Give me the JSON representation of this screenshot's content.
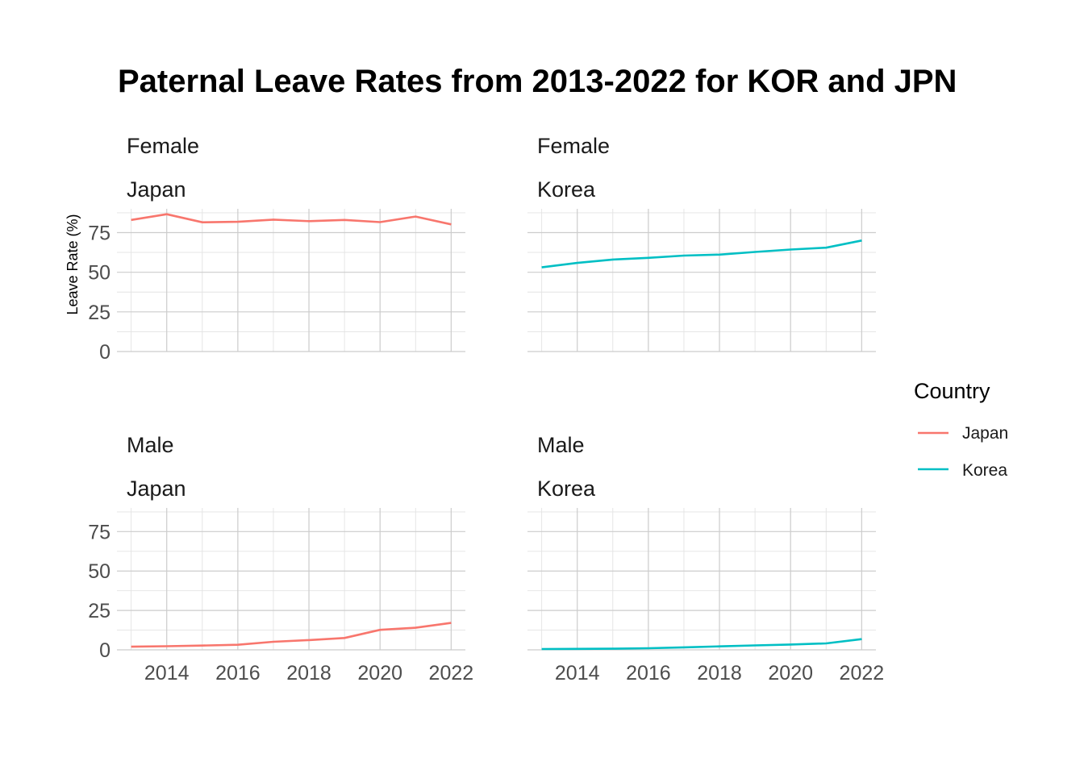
{
  "chart_data": {
    "type": "line",
    "title": "Paternal Leave Rates from 2013-2022 for KOR and JPN",
    "ylabel": "Leave Rate (%)",
    "xlabel": "",
    "xlim": [
      2013,
      2022
    ],
    "ylim": [
      0,
      90
    ],
    "x_ticks": [
      "2014",
      "2016",
      "2018",
      "2020",
      "2022"
    ],
    "y_ticks": [
      "0",
      "25",
      "50",
      "75"
    ],
    "grid": true,
    "legend": {
      "title": "Country",
      "position": "right",
      "entries": [
        {
          "label": "Japan",
          "color": "#F8766D"
        },
        {
          "label": "Korea",
          "color": "#00BFC4"
        }
      ]
    },
    "panels": [
      {
        "strip_top": "Female",
        "strip_bottom": "Japan",
        "country": "Japan",
        "x": [
          2013,
          2014,
          2015,
          2016,
          2017,
          2018,
          2019,
          2020,
          2021,
          2022
        ],
        "values": [
          83.0,
          86.6,
          81.5,
          81.8,
          83.2,
          82.2,
          83.0,
          81.6,
          85.1,
          80.2
        ]
      },
      {
        "strip_top": "Female",
        "strip_bottom": "Korea",
        "country": "Korea",
        "x": [
          2013,
          2014,
          2015,
          2016,
          2017,
          2018,
          2019,
          2020,
          2021,
          2022
        ],
        "values": [
          53.1,
          55.9,
          58.0,
          59.1,
          60.5,
          61.1,
          62.8,
          64.3,
          65.5,
          70.0
        ]
      },
      {
        "strip_top": "Male",
        "strip_bottom": "Japan",
        "country": "Japan",
        "x": [
          2013,
          2014,
          2015,
          2016,
          2017,
          2018,
          2019,
          2020,
          2021,
          2022
        ],
        "values": [
          2.0,
          2.3,
          2.7,
          3.2,
          5.1,
          6.2,
          7.5,
          12.7,
          14.0,
          17.1
        ]
      },
      {
        "strip_top": "Male",
        "strip_bottom": "Korea",
        "country": "Korea",
        "x": [
          2013,
          2014,
          2015,
          2016,
          2017,
          2018,
          2019,
          2020,
          2021,
          2022
        ],
        "values": [
          0.5,
          0.6,
          0.7,
          1.0,
          1.6,
          2.2,
          2.8,
          3.4,
          4.1,
          6.8
        ]
      }
    ]
  }
}
